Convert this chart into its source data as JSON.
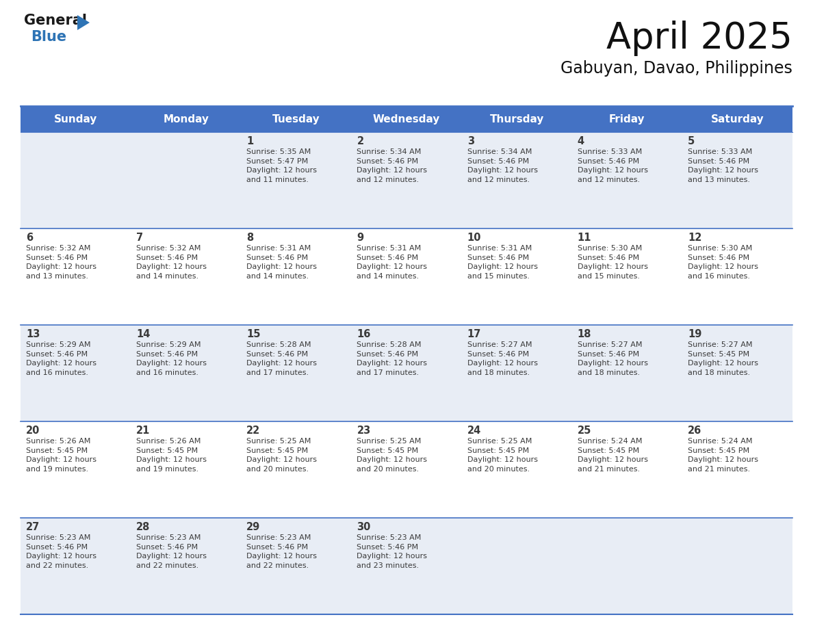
{
  "title": "April 2025",
  "subtitle": "Gabuyan, Davao, Philippines",
  "header_bg_color": "#4472C4",
  "header_text_color": "#FFFFFF",
  "header_font_size": 11,
  "day_names": [
    "Sunday",
    "Monday",
    "Tuesday",
    "Wednesday",
    "Thursday",
    "Friday",
    "Saturday"
  ],
  "title_font_size": 38,
  "subtitle_font_size": 17,
  "cell_text_color": "#3a3a3a",
  "day_num_color": "#3a3a3a",
  "line_color": "#4472C4",
  "background_color": "#FFFFFF",
  "row_bg_colors": [
    "#e8edf5",
    "#ffffff",
    "#e8edf5",
    "#ffffff",
    "#e8edf5"
  ],
  "logo_general_color": "#1a1a1a",
  "logo_blue_color": "#2E74B5",
  "logo_triangle_color": "#2E74B5",
  "calendar_data": [
    [
      {
        "day": "",
        "text": ""
      },
      {
        "day": "",
        "text": ""
      },
      {
        "day": "1",
        "text": "Sunrise: 5:35 AM\nSunset: 5:47 PM\nDaylight: 12 hours\nand 11 minutes."
      },
      {
        "day": "2",
        "text": "Sunrise: 5:34 AM\nSunset: 5:46 PM\nDaylight: 12 hours\nand 12 minutes."
      },
      {
        "day": "3",
        "text": "Sunrise: 5:34 AM\nSunset: 5:46 PM\nDaylight: 12 hours\nand 12 minutes."
      },
      {
        "day": "4",
        "text": "Sunrise: 5:33 AM\nSunset: 5:46 PM\nDaylight: 12 hours\nand 12 minutes."
      },
      {
        "day": "5",
        "text": "Sunrise: 5:33 AM\nSunset: 5:46 PM\nDaylight: 12 hours\nand 13 minutes."
      }
    ],
    [
      {
        "day": "6",
        "text": "Sunrise: 5:32 AM\nSunset: 5:46 PM\nDaylight: 12 hours\nand 13 minutes."
      },
      {
        "day": "7",
        "text": "Sunrise: 5:32 AM\nSunset: 5:46 PM\nDaylight: 12 hours\nand 14 minutes."
      },
      {
        "day": "8",
        "text": "Sunrise: 5:31 AM\nSunset: 5:46 PM\nDaylight: 12 hours\nand 14 minutes."
      },
      {
        "day": "9",
        "text": "Sunrise: 5:31 AM\nSunset: 5:46 PM\nDaylight: 12 hours\nand 14 minutes."
      },
      {
        "day": "10",
        "text": "Sunrise: 5:31 AM\nSunset: 5:46 PM\nDaylight: 12 hours\nand 15 minutes."
      },
      {
        "day": "11",
        "text": "Sunrise: 5:30 AM\nSunset: 5:46 PM\nDaylight: 12 hours\nand 15 minutes."
      },
      {
        "day": "12",
        "text": "Sunrise: 5:30 AM\nSunset: 5:46 PM\nDaylight: 12 hours\nand 16 minutes."
      }
    ],
    [
      {
        "day": "13",
        "text": "Sunrise: 5:29 AM\nSunset: 5:46 PM\nDaylight: 12 hours\nand 16 minutes."
      },
      {
        "day": "14",
        "text": "Sunrise: 5:29 AM\nSunset: 5:46 PM\nDaylight: 12 hours\nand 16 minutes."
      },
      {
        "day": "15",
        "text": "Sunrise: 5:28 AM\nSunset: 5:46 PM\nDaylight: 12 hours\nand 17 minutes."
      },
      {
        "day": "16",
        "text": "Sunrise: 5:28 AM\nSunset: 5:46 PM\nDaylight: 12 hours\nand 17 minutes."
      },
      {
        "day": "17",
        "text": "Sunrise: 5:27 AM\nSunset: 5:46 PM\nDaylight: 12 hours\nand 18 minutes."
      },
      {
        "day": "18",
        "text": "Sunrise: 5:27 AM\nSunset: 5:46 PM\nDaylight: 12 hours\nand 18 minutes."
      },
      {
        "day": "19",
        "text": "Sunrise: 5:27 AM\nSunset: 5:45 PM\nDaylight: 12 hours\nand 18 minutes."
      }
    ],
    [
      {
        "day": "20",
        "text": "Sunrise: 5:26 AM\nSunset: 5:45 PM\nDaylight: 12 hours\nand 19 minutes."
      },
      {
        "day": "21",
        "text": "Sunrise: 5:26 AM\nSunset: 5:45 PM\nDaylight: 12 hours\nand 19 minutes."
      },
      {
        "day": "22",
        "text": "Sunrise: 5:25 AM\nSunset: 5:45 PM\nDaylight: 12 hours\nand 20 minutes."
      },
      {
        "day": "23",
        "text": "Sunrise: 5:25 AM\nSunset: 5:45 PM\nDaylight: 12 hours\nand 20 minutes."
      },
      {
        "day": "24",
        "text": "Sunrise: 5:25 AM\nSunset: 5:45 PM\nDaylight: 12 hours\nand 20 minutes."
      },
      {
        "day": "25",
        "text": "Sunrise: 5:24 AM\nSunset: 5:45 PM\nDaylight: 12 hours\nand 21 minutes."
      },
      {
        "day": "26",
        "text": "Sunrise: 5:24 AM\nSunset: 5:45 PM\nDaylight: 12 hours\nand 21 minutes."
      }
    ],
    [
      {
        "day": "27",
        "text": "Sunrise: 5:23 AM\nSunset: 5:46 PM\nDaylight: 12 hours\nand 22 minutes."
      },
      {
        "day": "28",
        "text": "Sunrise: 5:23 AM\nSunset: 5:46 PM\nDaylight: 12 hours\nand 22 minutes."
      },
      {
        "day": "29",
        "text": "Sunrise: 5:23 AM\nSunset: 5:46 PM\nDaylight: 12 hours\nand 22 minutes."
      },
      {
        "day": "30",
        "text": "Sunrise: 5:23 AM\nSunset: 5:46 PM\nDaylight: 12 hours\nand 23 minutes."
      },
      {
        "day": "",
        "text": ""
      },
      {
        "day": "",
        "text": ""
      },
      {
        "day": "",
        "text": ""
      }
    ]
  ]
}
